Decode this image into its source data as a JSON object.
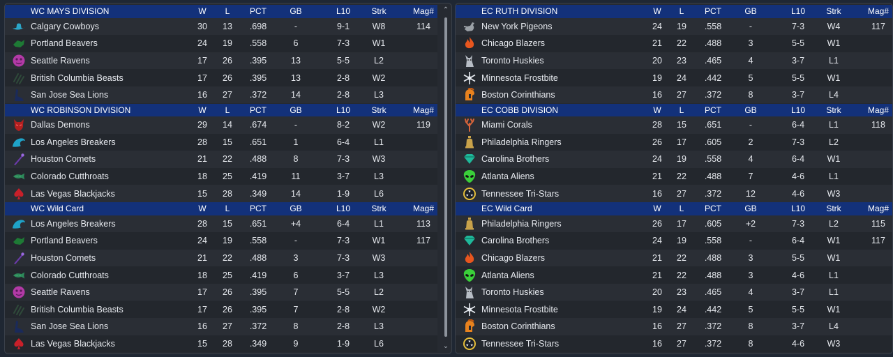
{
  "columns": {
    "w": "W",
    "l": "L",
    "pct": "PCT",
    "gb": "GB",
    "l10": "L10",
    "strk": "Strk",
    "mag": "Mag#"
  },
  "colors": {
    "header": "#13317a",
    "row_odd": "#2a2e35",
    "row_even": "#23272d",
    "panel": "#262a31"
  },
  "left": {
    "sections": [
      {
        "title": "WC MAYS DIVISION",
        "teams": [
          {
            "logo": "cowboy-hat-icon",
            "color": "#2ba6c8",
            "name": "Calgary Cowboys",
            "w": "30",
            "l": "13",
            "pct": ".698",
            "gb": "-",
            "l10": "9-1",
            "strk": "W8",
            "mag": "114"
          },
          {
            "logo": "beaver-icon",
            "color": "#1e7a35",
            "name": "Portland Beavers",
            "w": "24",
            "l": "19",
            "pct": ".558",
            "gb": "6",
            "l10": "7-3",
            "strk": "W1",
            "mag": ""
          },
          {
            "logo": "raven-icon",
            "color": "#b23aa6",
            "name": "Seattle Ravens",
            "w": "17",
            "l": "26",
            "pct": ".395",
            "gb": "13",
            "l10": "5-5",
            "strk": "L2",
            "mag": ""
          },
          {
            "logo": "claw-icon",
            "color": "#2f4a3a",
            "name": "British Columbia Beasts",
            "w": "17",
            "l": "26",
            "pct": ".395",
            "gb": "13",
            "l10": "2-8",
            "strk": "W2",
            "mag": ""
          },
          {
            "logo": "sea-lion-icon",
            "color": "#1a2a5a",
            "name": "San Jose Sea Lions",
            "w": "16",
            "l": "27",
            "pct": ".372",
            "gb": "14",
            "l10": "2-8",
            "strk": "L3",
            "mag": ""
          }
        ]
      },
      {
        "title": "WC ROBINSON DIVISION",
        "teams": [
          {
            "logo": "demon-icon",
            "color": "#b32020",
            "name": "Dallas Demons",
            "w": "29",
            "l": "14",
            "pct": ".674",
            "gb": "-",
            "l10": "8-2",
            "strk": "W2",
            "mag": "119"
          },
          {
            "logo": "wave-icon",
            "color": "#1fa3c8",
            "name": "Los Angeles Breakers",
            "w": "28",
            "l": "15",
            "pct": ".651",
            "gb": "1",
            "l10": "6-4",
            "strk": "L1",
            "mag": ""
          },
          {
            "logo": "comet-icon",
            "color": "#6a3aa8",
            "name": "Houston Comets",
            "w": "21",
            "l": "22",
            "pct": ".488",
            "gb": "8",
            "l10": "7-3",
            "strk": "W3",
            "mag": ""
          },
          {
            "logo": "fish-icon",
            "color": "#2d8a5a",
            "name": "Colorado Cutthroats",
            "w": "18",
            "l": "25",
            "pct": ".419",
            "gb": "11",
            "l10": "3-7",
            "strk": "L3",
            "mag": ""
          },
          {
            "logo": "spade-icon",
            "color": "#c8202a",
            "name": "Las Vegas Blackjacks",
            "w": "15",
            "l": "28",
            "pct": ".349",
            "gb": "14",
            "l10": "1-9",
            "strk": "L6",
            "mag": ""
          }
        ]
      },
      {
        "title": "WC  Wild Card",
        "teams": [
          {
            "logo": "wave-icon",
            "color": "#1fa3c8",
            "name": "Los Angeles Breakers",
            "w": "28",
            "l": "15",
            "pct": ".651",
            "gb": "+4",
            "l10": "6-4",
            "strk": "L1",
            "mag": "113"
          },
          {
            "logo": "beaver-icon",
            "color": "#1e7a35",
            "name": "Portland Beavers",
            "w": "24",
            "l": "19",
            "pct": ".558",
            "gb": "-",
            "l10": "7-3",
            "strk": "W1",
            "mag": "117"
          },
          {
            "logo": "comet-icon",
            "color": "#6a3aa8",
            "name": "Houston Comets",
            "w": "21",
            "l": "22",
            "pct": ".488",
            "gb": "3",
            "l10": "7-3",
            "strk": "W3",
            "mag": ""
          },
          {
            "logo": "fish-icon",
            "color": "#2d8a5a",
            "name": "Colorado Cutthroats",
            "w": "18",
            "l": "25",
            "pct": ".419",
            "gb": "6",
            "l10": "3-7",
            "strk": "L3",
            "mag": ""
          },
          {
            "logo": "raven-icon",
            "color": "#b23aa6",
            "name": "Seattle Ravens",
            "w": "17",
            "l": "26",
            "pct": ".395",
            "gb": "7",
            "l10": "5-5",
            "strk": "L2",
            "mag": ""
          },
          {
            "logo": "claw-icon",
            "color": "#2f4a3a",
            "name": "British Columbia Beasts",
            "w": "17",
            "l": "26",
            "pct": ".395",
            "gb": "7",
            "l10": "2-8",
            "strk": "W2",
            "mag": ""
          },
          {
            "logo": "sea-lion-icon",
            "color": "#1a2a5a",
            "name": "San Jose Sea Lions",
            "w": "16",
            "l": "27",
            "pct": ".372",
            "gb": "8",
            "l10": "2-8",
            "strk": "L3",
            "mag": ""
          },
          {
            "logo": "spade-icon",
            "color": "#c8202a",
            "name": "Las Vegas Blackjacks",
            "w": "15",
            "l": "28",
            "pct": ".349",
            "gb": "9",
            "l10": "1-9",
            "strk": "L6",
            "mag": ""
          }
        ]
      }
    ]
  },
  "right": {
    "sections": [
      {
        "title": "EC RUTH DIVISION",
        "teams": [
          {
            "logo": "pigeon-icon",
            "color": "#9aa0a6",
            "name": "New York Pigeons",
            "w": "24",
            "l": "19",
            "pct": ".558",
            "gb": "-",
            "l10": "7-3",
            "strk": "W4",
            "mag": "117"
          },
          {
            "logo": "flame-icon",
            "color": "#e8561e",
            "name": "Chicago Blazers",
            "w": "21",
            "l": "22",
            "pct": ".488",
            "gb": "3",
            "l10": "5-5",
            "strk": "W1",
            "mag": ""
          },
          {
            "logo": "husky-icon",
            "color": "#b8bec6",
            "name": "Toronto Huskies",
            "w": "20",
            "l": "23",
            "pct": ".465",
            "gb": "4",
            "l10": "3-7",
            "strk": "L1",
            "mag": ""
          },
          {
            "logo": "snowflake-icon",
            "color": "#e8ecf2",
            "name": "Minnesota Frostbite",
            "w": "19",
            "l": "24",
            "pct": ".442",
            "gb": "5",
            "l10": "5-5",
            "strk": "W1",
            "mag": ""
          },
          {
            "logo": "helmet-icon",
            "color": "#e8821e",
            "name": "Boston Corinthians",
            "w": "16",
            "l": "27",
            "pct": ".372",
            "gb": "8",
            "l10": "3-7",
            "strk": "L4",
            "mag": ""
          }
        ]
      },
      {
        "title": "EC COBB DIVISION",
        "teams": [
          {
            "logo": "coral-icon",
            "color": "#d8643a",
            "name": "Miami Corals",
            "w": "28",
            "l": "15",
            "pct": ".651",
            "gb": "-",
            "l10": "6-4",
            "strk": "L1",
            "mag": "118"
          },
          {
            "logo": "bell-icon",
            "color": "#c8a24a",
            "name": "Philadelphia Ringers",
            "w": "26",
            "l": "17",
            "pct": ".605",
            "gb": "2",
            "l10": "7-3",
            "strk": "L2",
            "mag": ""
          },
          {
            "logo": "diamond-icon",
            "color": "#1fb89a",
            "name": "Carolina Brothers",
            "w": "24",
            "l": "19",
            "pct": ".558",
            "gb": "4",
            "l10": "6-4",
            "strk": "W1",
            "mag": ""
          },
          {
            "logo": "alien-icon",
            "color": "#3acf3a",
            "name": "Atlanta Aliens",
            "w": "21",
            "l": "22",
            "pct": ".488",
            "gb": "7",
            "l10": "4-6",
            "strk": "L1",
            "mag": ""
          },
          {
            "logo": "tri-star-icon",
            "color": "#e8c03a",
            "name": "Tennessee Tri-Stars",
            "w": "16",
            "l": "27",
            "pct": ".372",
            "gb": "12",
            "l10": "4-6",
            "strk": "W3",
            "mag": ""
          }
        ]
      },
      {
        "title": "EC  Wild Card",
        "teams": [
          {
            "logo": "bell-icon",
            "color": "#c8a24a",
            "name": "Philadelphia Ringers",
            "w": "26",
            "l": "17",
            "pct": ".605",
            "gb": "+2",
            "l10": "7-3",
            "strk": "L2",
            "mag": "115"
          },
          {
            "logo": "diamond-icon",
            "color": "#1fb89a",
            "name": "Carolina Brothers",
            "w": "24",
            "l": "19",
            "pct": ".558",
            "gb": "-",
            "l10": "6-4",
            "strk": "W1",
            "mag": "117"
          },
          {
            "logo": "flame-icon",
            "color": "#e8561e",
            "name": "Chicago Blazers",
            "w": "21",
            "l": "22",
            "pct": ".488",
            "gb": "3",
            "l10": "5-5",
            "strk": "W1",
            "mag": ""
          },
          {
            "logo": "alien-icon",
            "color": "#3acf3a",
            "name": "Atlanta Aliens",
            "w": "21",
            "l": "22",
            "pct": ".488",
            "gb": "3",
            "l10": "4-6",
            "strk": "L1",
            "mag": ""
          },
          {
            "logo": "husky-icon",
            "color": "#b8bec6",
            "name": "Toronto Huskies",
            "w": "20",
            "l": "23",
            "pct": ".465",
            "gb": "4",
            "l10": "3-7",
            "strk": "L1",
            "mag": ""
          },
          {
            "logo": "snowflake-icon",
            "color": "#e8ecf2",
            "name": "Minnesota Frostbite",
            "w": "19",
            "l": "24",
            "pct": ".442",
            "gb": "5",
            "l10": "5-5",
            "strk": "W1",
            "mag": ""
          },
          {
            "logo": "helmet-icon",
            "color": "#e8821e",
            "name": "Boston Corinthians",
            "w": "16",
            "l": "27",
            "pct": ".372",
            "gb": "8",
            "l10": "3-7",
            "strk": "L4",
            "mag": ""
          },
          {
            "logo": "tri-star-icon",
            "color": "#e8c03a",
            "name": "Tennessee Tri-Stars",
            "w": "16",
            "l": "27",
            "pct": ".372",
            "gb": "8",
            "l10": "4-6",
            "strk": "W3",
            "mag": ""
          }
        ]
      }
    ]
  }
}
